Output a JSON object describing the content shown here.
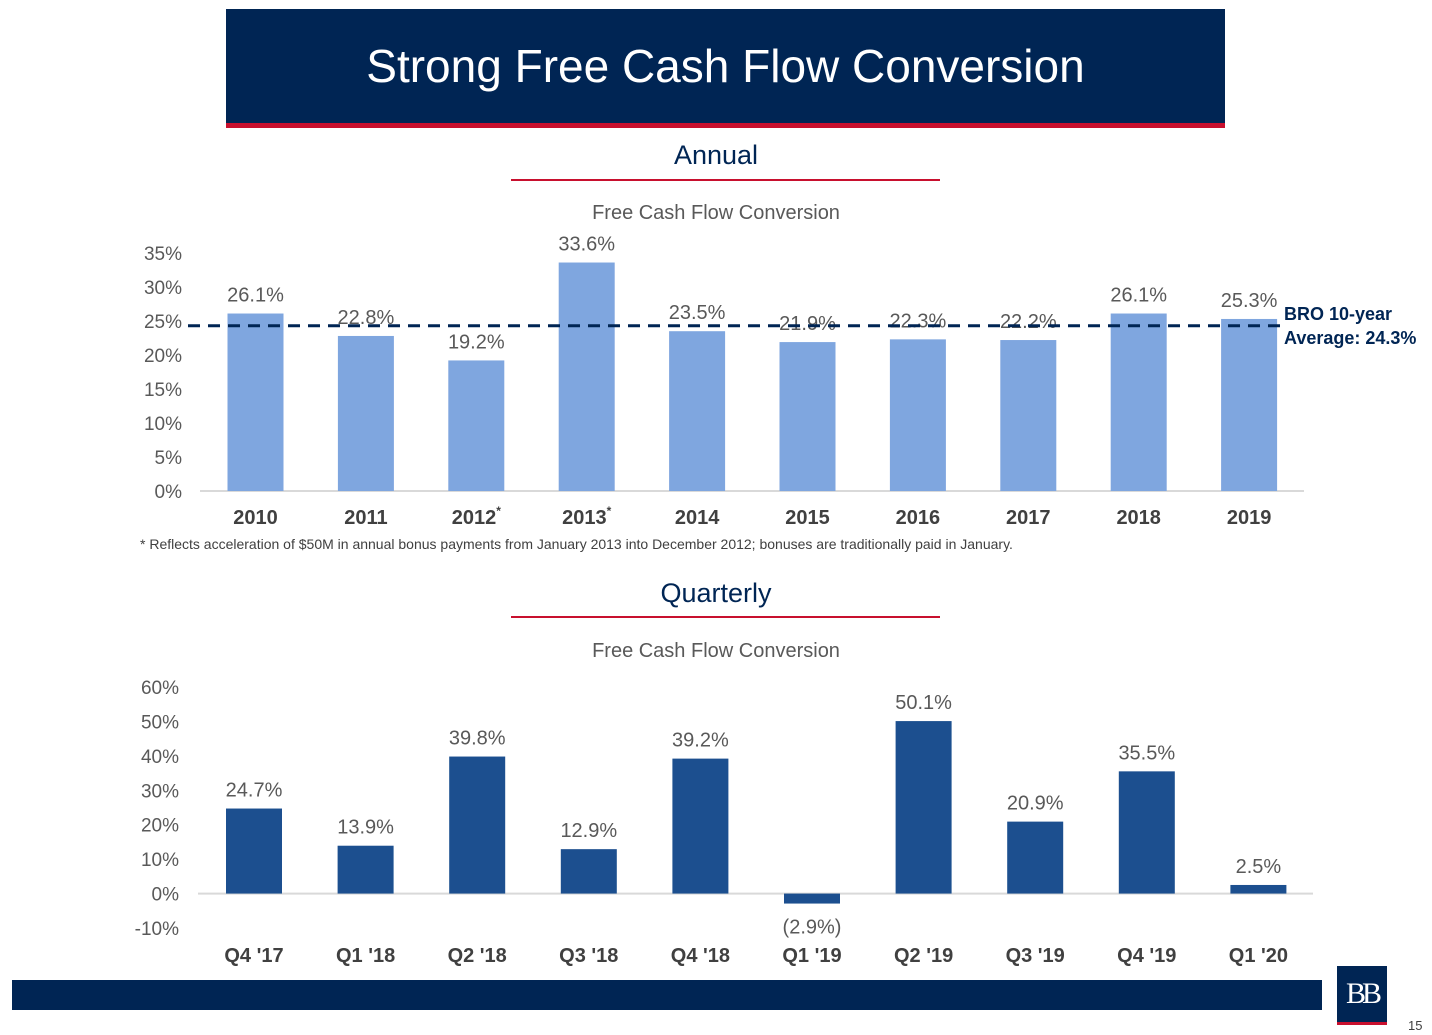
{
  "header": {
    "title": "Strong Free Cash Flow Conversion"
  },
  "annual": {
    "section_title": "Annual"
  },
  "quarterly": {
    "section_title": "Quarterly"
  },
  "footnote": "* Reflects acceleration of $50M in annual bonus payments from January 2013 into December 2012; bonuses are traditionally paid in January.",
  "average": {
    "line1": "BRO 10-year",
    "line2": "Average: 24.3%",
    "value": 24.3
  },
  "logo": {
    "text": "BB"
  },
  "page_number": "15",
  "colors": {
    "annual_bar": "#7fa6df",
    "quarterly_bar": "#1c4f8f",
    "banner": "#002554",
    "accent_red": "#c8102e"
  },
  "chart_data": [
    {
      "type": "bar",
      "title": "Free Cash Flow Conversion",
      "categories": [
        "2010",
        "2011",
        "2012",
        "2013",
        "2014",
        "2015",
        "2016",
        "2017",
        "2018",
        "2019"
      ],
      "category_marks": [
        "",
        "",
        "*",
        "*",
        "",
        "",
        "",
        "",
        "",
        ""
      ],
      "values": [
        26.1,
        22.8,
        19.2,
        33.6,
        23.5,
        21.9,
        22.3,
        22.2,
        26.1,
        25.3
      ],
      "data_labels": [
        "26.1%",
        "22.8%",
        "19.2%",
        "33.6%",
        "23.5%",
        "21.9%",
        "22.3%",
        "22.2%",
        "26.1%",
        "25.3%"
      ],
      "ylim": [
        0,
        35
      ],
      "yticks": [
        "0%",
        "5%",
        "10%",
        "15%",
        "20%",
        "25%",
        "30%",
        "35%"
      ],
      "reference_line": 24.3,
      "grid": false,
      "xlabel": "",
      "ylabel": ""
    },
    {
      "type": "bar",
      "title": "Free Cash Flow Conversion",
      "categories": [
        "Q4 '17",
        "Q1 '18",
        "Q2 '18",
        "Q3 '18",
        "Q4 '18",
        "Q1 '19",
        "Q2 '19",
        "Q3 '19",
        "Q4 '19",
        "Q1 '20"
      ],
      "values": [
        24.7,
        13.9,
        39.8,
        12.9,
        39.2,
        -2.9,
        50.1,
        20.9,
        35.5,
        2.5
      ],
      "data_labels": [
        "24.7%",
        "13.9%",
        "39.8%",
        "12.9%",
        "39.2%",
        "(2.9%)",
        "50.1%",
        "20.9%",
        "35.5%",
        "2.5%"
      ],
      "ylim": [
        -10,
        60
      ],
      "yticks": [
        "-10%",
        "0%",
        "10%",
        "20%",
        "30%",
        "40%",
        "50%",
        "60%"
      ],
      "grid": false,
      "xlabel": "",
      "ylabel": ""
    }
  ]
}
